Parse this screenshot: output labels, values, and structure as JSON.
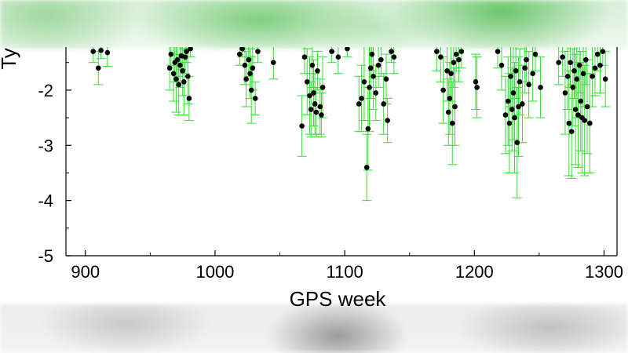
{
  "chart_data": {
    "type": "scatter",
    "xlabel": "GPS week",
    "ylabel": "Ty",
    "xlim": [
      885,
      1310
    ],
    "ylim": [
      -5,
      -1.22
    ],
    "xticks": [
      900,
      1000,
      1100,
      1200,
      1300
    ],
    "xtick_labels": [
      "900",
      "1000",
      "1100",
      "1200",
      "1300"
    ],
    "yticks": [
      -5,
      -4,
      -3,
      -2
    ],
    "ytick_labels": [
      "-5",
      "-4",
      "-3",
      "-2"
    ],
    "grid": false,
    "colors": {
      "points": "#000000",
      "error_bars": "#33dd33",
      "axes": "#000000"
    },
    "series": [
      {
        "x": [
          906,
          910,
          912,
          917,
          965,
          966,
          968,
          969,
          970,
          971,
          972,
          973,
          974,
          975,
          976,
          977,
          978,
          979,
          980,
          981,
          1019,
          1021,
          1023,
          1024,
          1026,
          1027,
          1028,
          1029,
          1031,
          1033,
          1045,
          1067,
          1069,
          1071,
          1073,
          1074,
          1075,
          1076,
          1077,
          1078,
          1079,
          1081,
          1082,
          1083,
          1090,
          1095,
          1102,
          1111,
          1113,
          1115,
          1117,
          1118,
          1119,
          1120,
          1121,
          1122,
          1124,
          1126,
          1128,
          1130,
          1132,
          1133,
          1136,
          1138,
          1171,
          1174,
          1176,
          1179,
          1180,
          1181,
          1182,
          1183,
          1184,
          1185,
          1186,
          1188,
          1190,
          1201,
          1202,
          1218,
          1221,
          1224,
          1226,
          1227,
          1228,
          1229,
          1230,
          1231,
          1232,
          1233,
          1234,
          1235,
          1237,
          1239,
          1240,
          1242,
          1245,
          1247,
          1251,
          1265,
          1268,
          1270,
          1272,
          1273,
          1274,
          1275,
          1276,
          1277,
          1278,
          1279,
          1280,
          1281,
          1282,
          1283,
          1284,
          1285,
          1286,
          1287,
          1289,
          1291,
          1293,
          1295,
          1297,
          1299,
          1301
        ],
        "y": [
          -1.3,
          -1.6,
          -1.28,
          -1.32,
          -1.6,
          -1.35,
          -1.7,
          -1.5,
          -1.8,
          -1.45,
          -1.9,
          -1.55,
          -1.38,
          -1.65,
          -1.85,
          -1.4,
          -1.3,
          -1.75,
          -2.15,
          -1.25,
          -1.35,
          -1.25,
          -1.55,
          -1.8,
          -1.45,
          -1.7,
          -2.0,
          -1.6,
          -2.15,
          -1.3,
          -1.5,
          -2.65,
          -1.4,
          -1.85,
          -2.1,
          -2.35,
          -1.55,
          -2.05,
          -2.25,
          -2.4,
          -1.65,
          -2.3,
          -2.45,
          -1.95,
          -1.3,
          -1.4,
          -1.25,
          -2.25,
          -2.15,
          -1.85,
          -3.4,
          -2.7,
          -1.95,
          -1.6,
          -1.35,
          -1.75,
          -2.05,
          -1.55,
          -1.45,
          -2.25,
          -1.8,
          -2.55,
          -1.3,
          -1.4,
          -1.3,
          -1.4,
          -2.0,
          -1.65,
          -2.4,
          -2.15,
          -1.7,
          -2.6,
          -1.5,
          -2.3,
          -1.35,
          -1.45,
          -1.3,
          -1.85,
          -1.95,
          -1.3,
          -1.55,
          -2.45,
          -2.2,
          -2.6,
          -1.75,
          -2.35,
          -2.05,
          -2.5,
          -1.65,
          -2.95,
          -2.3,
          -1.85,
          -2.25,
          -1.6,
          -1.45,
          -1.9,
          -1.7,
          -1.35,
          -1.95,
          -1.5,
          -1.4,
          -2.05,
          -1.75,
          -2.6,
          -1.5,
          -2.75,
          -1.95,
          -1.65,
          -2.35,
          -1.8,
          -2.45,
          -1.55,
          -2.2,
          -2.5,
          -1.7,
          -2.55,
          -1.45,
          -2.3,
          -2.6,
          -1.75,
          -1.6,
          -1.35,
          -1.55,
          -1.3,
          -1.8
        ],
        "err": [
          0.2,
          0.3,
          0.15,
          0.25,
          0.4,
          0.2,
          0.5,
          0.35,
          0.6,
          0.3,
          0.55,
          0.4,
          0.25,
          0.45,
          0.6,
          0.3,
          0.2,
          0.5,
          0.4,
          0.15,
          0.2,
          0.15,
          0.35,
          0.5,
          0.3,
          0.45,
          0.6,
          0.4,
          0.3,
          0.2,
          0.3,
          0.55,
          0.3,
          0.6,
          0.7,
          0.5,
          0.4,
          0.6,
          0.55,
          0.45,
          0.35,
          0.5,
          0.4,
          0.55,
          0.2,
          0.3,
          0.15,
          0.5,
          0.6,
          0.7,
          0.6,
          0.75,
          0.8,
          0.55,
          0.3,
          0.6,
          0.5,
          0.4,
          0.3,
          0.55,
          0.45,
          0.4,
          0.2,
          0.3,
          0.35,
          0.45,
          0.6,
          0.55,
          0.6,
          0.65,
          0.5,
          0.75,
          0.45,
          0.7,
          0.3,
          0.4,
          0.3,
          0.5,
          0.55,
          0.3,
          0.45,
          0.7,
          0.8,
          0.9,
          0.55,
          0.75,
          0.85,
          1.0,
          0.5,
          1.0,
          0.9,
          0.6,
          0.7,
          0.45,
          0.4,
          0.6,
          0.5,
          0.3,
          0.55,
          0.4,
          0.35,
          0.75,
          0.6,
          0.95,
          0.45,
          0.85,
          0.7,
          0.5,
          1.0,
          0.7,
          0.95,
          0.5,
          0.9,
          1.0,
          0.6,
          1.0,
          0.45,
          0.85,
          0.9,
          0.55,
          0.5,
          0.3,
          0.5,
          0.25,
          0.5
        ]
      }
    ]
  }
}
